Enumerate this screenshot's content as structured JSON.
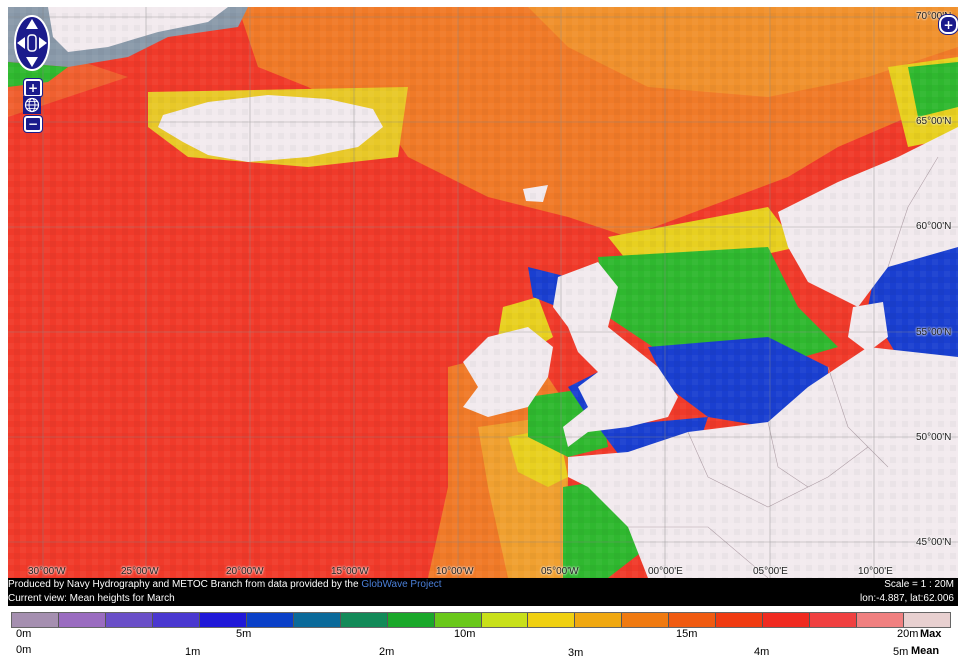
{
  "map": {
    "grid_labels_lon": [
      "30°00'W",
      "25°00'W",
      "20°00'W",
      "15°00'W",
      "10°00'W",
      "05°00'W",
      "00°00'E",
      "05°00'E",
      "10°00'E"
    ],
    "grid_labels_lat": [
      "70°00'N",
      "65°00'N",
      "60°00'N",
      "55°00'N",
      "50°00'N",
      "45°00'N"
    ],
    "colors": {
      "ocean_high": "#f03a2a",
      "ocean_mid": "#f07a20",
      "land": "#f2eaee",
      "shelf_green": "#2fb82f",
      "shelf_blue": "#1a3fd0",
      "ice": "#8a9aaa"
    }
  },
  "controls": {
    "pan_up_icon": "triangle-up",
    "pan_down_icon": "triangle-down",
    "pan_left_icon": "triangle-left",
    "pan_right_icon": "triangle-right",
    "zoom_in": "+",
    "zoom_world_icon": "globe",
    "zoom_out": "−",
    "layer_switcher": "+"
  },
  "info_bar": {
    "credit_prefix": "Produced by Navy Hydrography and METOC Branch from data provided by the ",
    "credit_link": "GlobWave Project",
    "current_view": "Current view: Mean heights for March",
    "scale": "Scale = 1 : 20M",
    "coords": "lon:-4.887, lat:62.006"
  },
  "legend": {
    "swatches": [
      "#a58fb0",
      "#9a6cc0",
      "#6a4fc8",
      "#4a38d0",
      "#2018d8",
      "#0a40c8",
      "#0a6a9a",
      "#128a58",
      "#1aa82a",
      "#6ac81a",
      "#c8e01a",
      "#f0d010",
      "#f0a810",
      "#f07a10",
      "#f05a10",
      "#f03a10",
      "#f02a20",
      "#f04040",
      "#f08080",
      "#e8d0d0"
    ],
    "top_labels": [
      "0m",
      "5m",
      "10m",
      "15m",
      "20m"
    ],
    "top_suffix": "Max",
    "bottom_labels": [
      "0m",
      "1m",
      "2m",
      "3m",
      "4m",
      "5m"
    ],
    "bottom_suffix": "Mean"
  }
}
